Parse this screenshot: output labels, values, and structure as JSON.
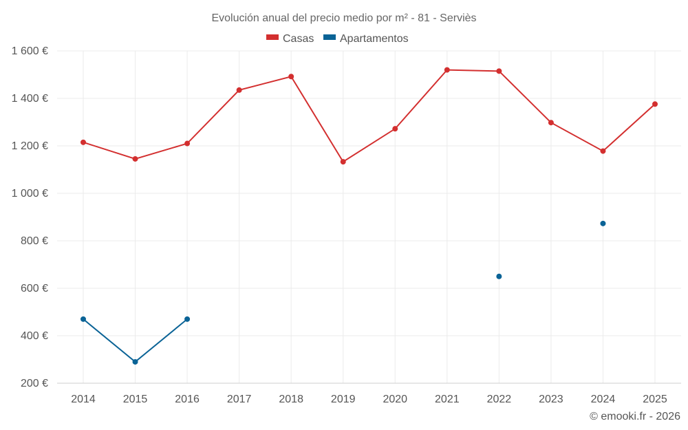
{
  "chart_data": {
    "type": "line",
    "title": "Evolución anual del precio medio por m² - 81 - Serviès",
    "categories": [
      "2014",
      "2015",
      "2016",
      "2017",
      "2018",
      "2019",
      "2020",
      "2021",
      "2022",
      "2023",
      "2024",
      "2025"
    ],
    "y_ticks": [
      200,
      400,
      600,
      800,
      1000,
      1200,
      1400,
      1600
    ],
    "y_tick_labels": [
      "200 €",
      "400 €",
      "600 €",
      "800 €",
      "1 000 €",
      "1 200 €",
      "1 400 €",
      "1 600 €"
    ],
    "ylim": [
      200,
      1600
    ],
    "grid": true,
    "legend_position": "top-center",
    "series": [
      {
        "name": "Casas",
        "color": "#d32f2f",
        "values": [
          1215,
          1145,
          1210,
          1435,
          1492,
          1133,
          1272,
          1520,
          1515,
          1298,
          1178,
          1376
        ]
      },
      {
        "name": "Apartamentos",
        "color": "#0a6396",
        "values": [
          470,
          290,
          470,
          null,
          null,
          null,
          null,
          null,
          650,
          null,
          873,
          null
        ]
      }
    ]
  },
  "credit": "© emooki.fr - 2026"
}
